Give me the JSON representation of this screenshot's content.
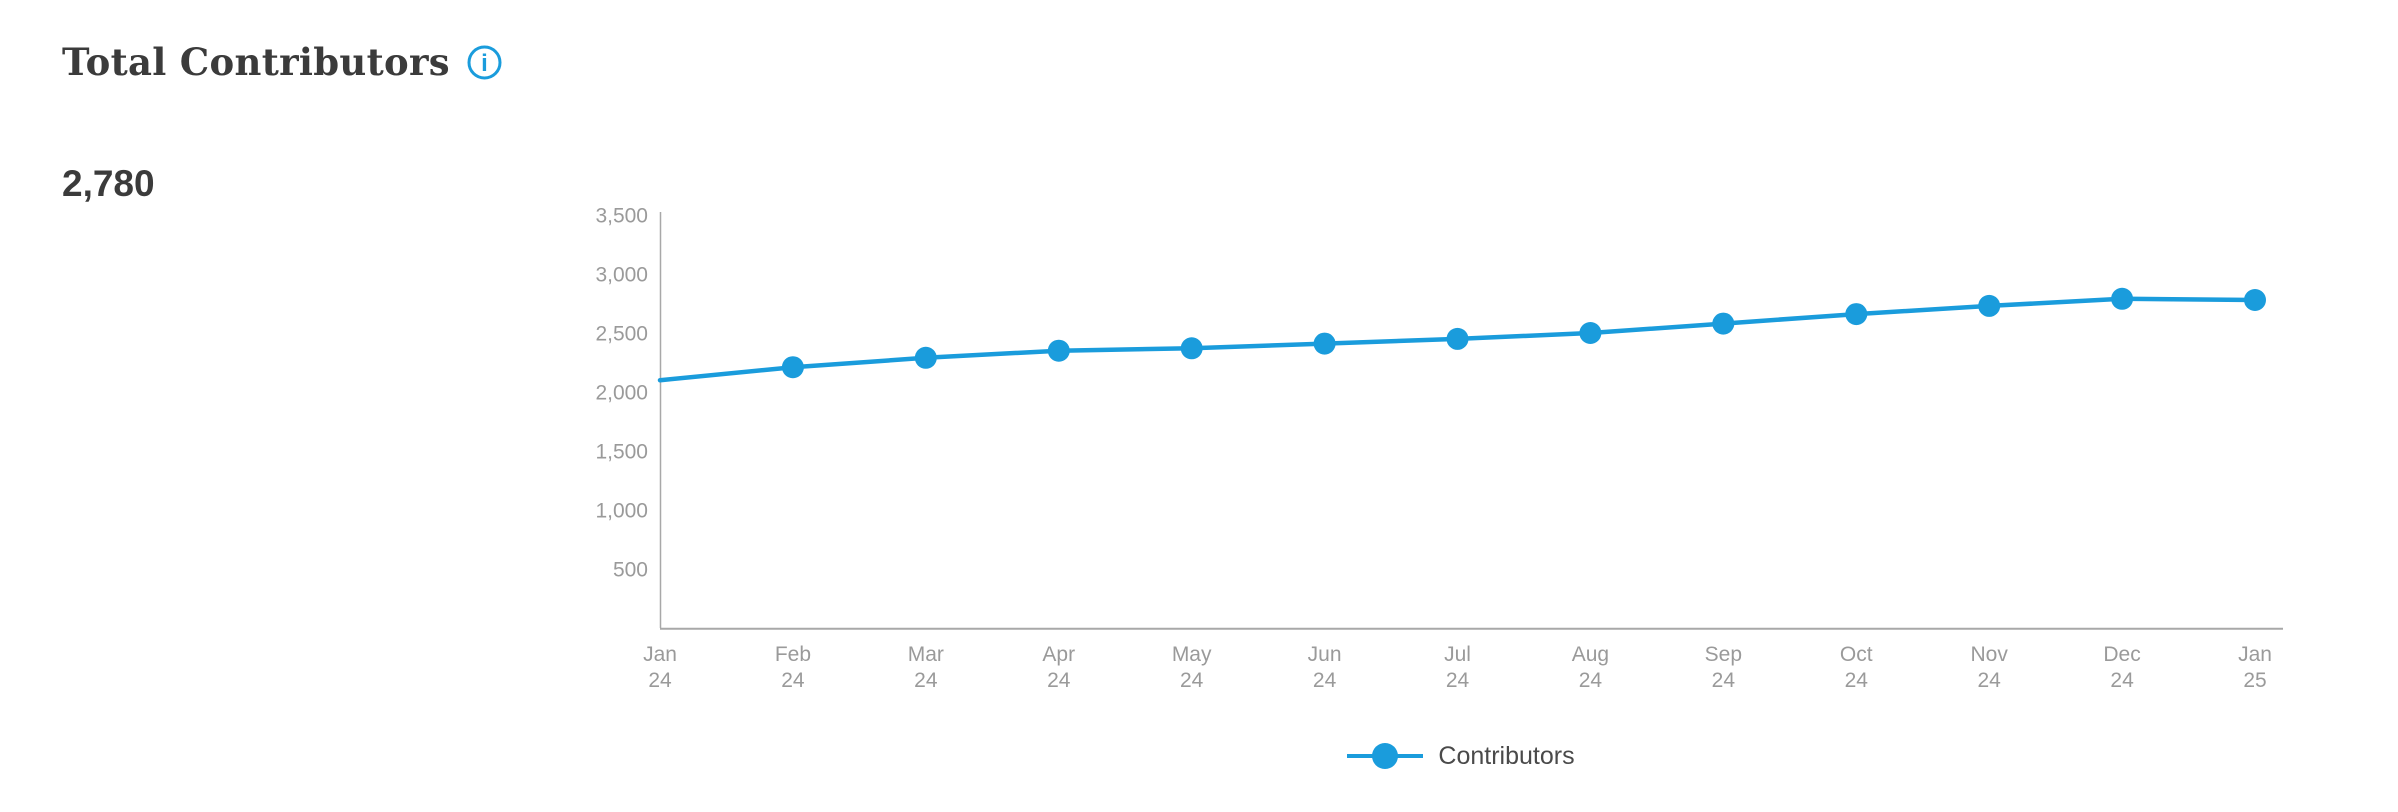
{
  "header": {
    "title": "Total Contributors",
    "kpi_value": "2,780"
  },
  "colors": {
    "accent": "#1A9CDC",
    "axis_line": "#A8A8A8",
    "tick_label": "#9A9A9A",
    "title_text": "#3B3B3B",
    "legend_text": "#4A4A4A"
  },
  "chart_data": {
    "type": "line",
    "title": "Total Contributors",
    "categories": [
      "Jan 24",
      "Feb 24",
      "Mar 24",
      "Apr 24",
      "May 24",
      "Jun 24",
      "Jul 24",
      "Aug 24",
      "Sep 24",
      "Oct 24",
      "Nov 24",
      "Dec 24",
      "Jan 25"
    ],
    "series": [
      {
        "name": "Contributors",
        "color": "#1A9CDC",
        "values": [
          2100,
          2210,
          2290,
          2350,
          2370,
          2410,
          2450,
          2500,
          2580,
          2660,
          2730,
          2790,
          2780
        ],
        "marker": "circle",
        "first_marker_hidden": true
      }
    ],
    "xlabel": "",
    "ylabel": "",
    "ylim": [
      0,
      3500
    ],
    "y_ticks": [
      500,
      1000,
      1500,
      2000,
      2500,
      3000,
      3500
    ],
    "grid": false,
    "legend_position": "bottom"
  }
}
